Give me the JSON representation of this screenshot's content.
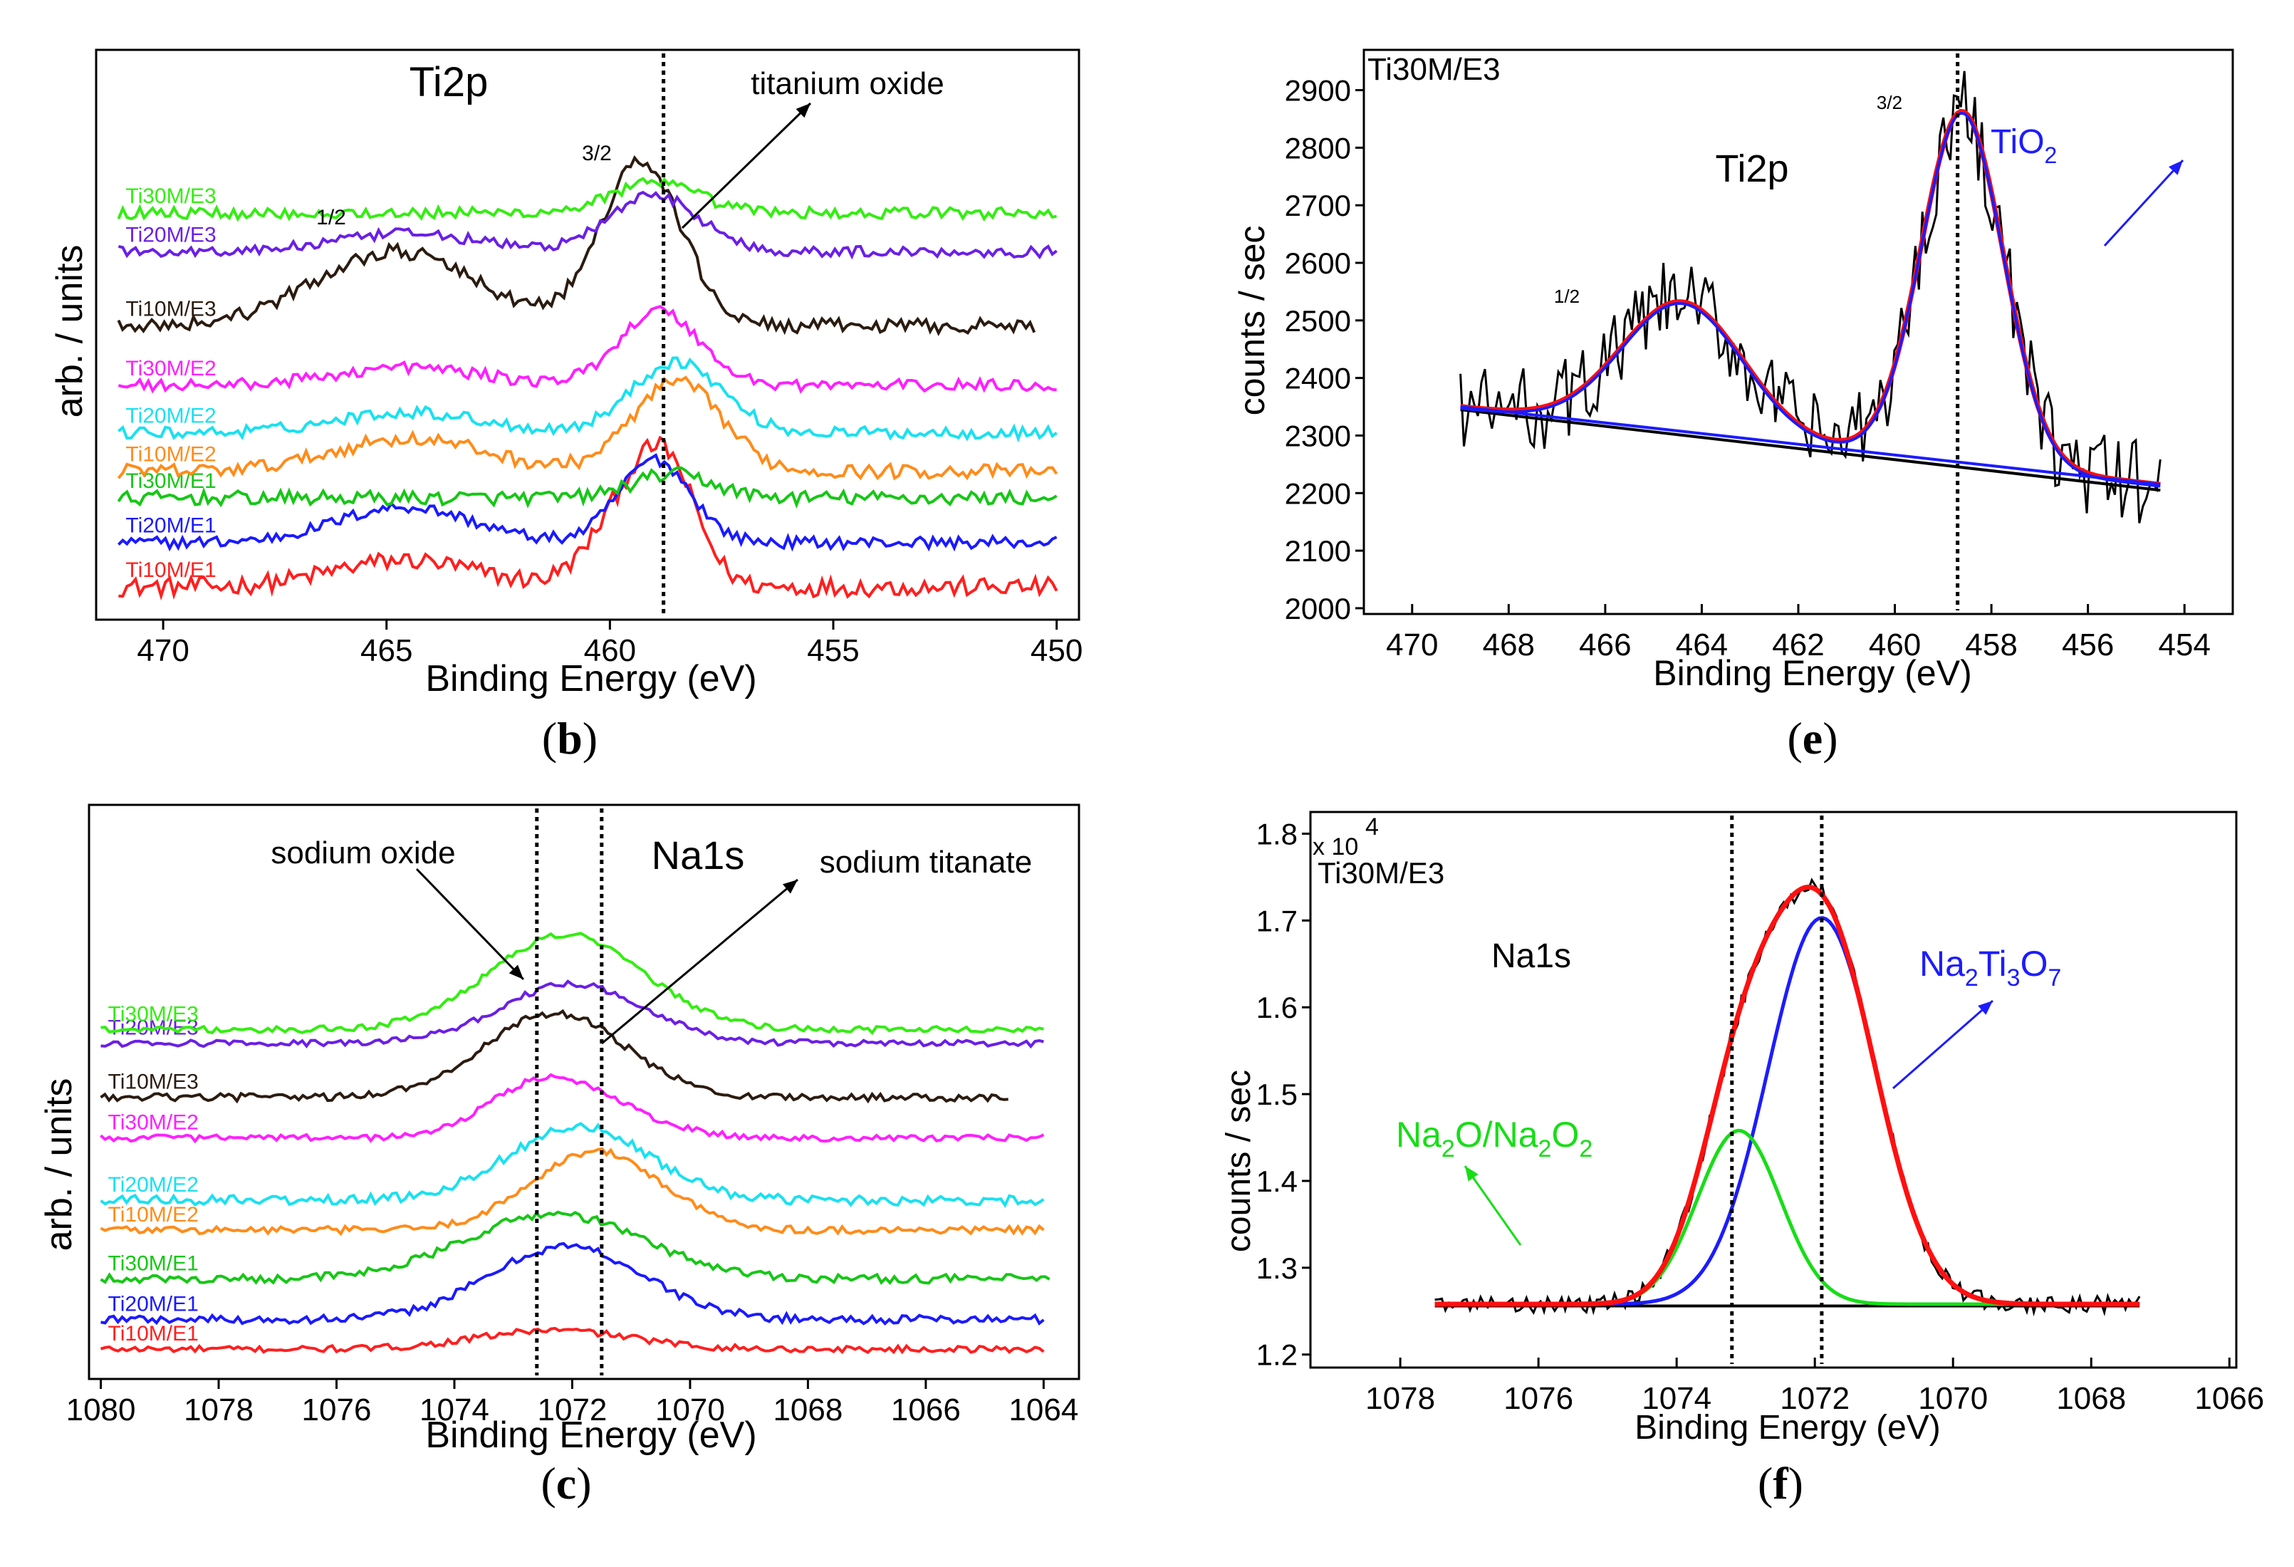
{
  "chart_data": [
    {
      "id": "b",
      "type": "line",
      "caption": "b",
      "title": "Ti2p",
      "xlabel": "Binding Energy (eV)",
      "ylabel": "arb. / units",
      "xlim": [
        471.5,
        449.5
      ],
      "xticks": [
        470,
        465,
        460,
        455,
        450
      ],
      "ylim": [
        0,
        9.6
      ],
      "grid": false,
      "vlines": [
        458.8
      ],
      "annotations": [
        {
          "text": "titanium oxide",
          "at_x": 458.0,
          "at_y": 7.0
        },
        {
          "text": "3/2",
          "at_x": 460.5,
          "at_y": 7.75
        },
        {
          "text": "1/2",
          "at_x": 466.2,
          "at_y": 6.75
        }
      ],
      "series": [
        {
          "name": "Ti10M/E1",
          "color": "#ff1f1f",
          "x_range": [
            471,
            450
          ],
          "baseline": 0.55,
          "noise": 0.16,
          "peaks": [
            [
              459.3,
              1.75,
              0.9
            ],
            [
              458.6,
              0.9,
              0.6
            ],
            [
              464.6,
              0.45,
              1.6
            ]
          ],
          "label": "Ti10M/E1"
        },
        {
          "name": "Ti20M/E1",
          "color": "#1a1aff",
          "x_range": [
            471,
            450
          ],
          "baseline": 1.3,
          "noise": 0.1,
          "peaks": [
            [
              459.0,
              1.4,
              0.8
            ],
            [
              464.6,
              0.6,
              1.5
            ]
          ],
          "label": "Ti20M/E1"
        },
        {
          "name": "Ti30M/E1",
          "color": "#16c716",
          "x_range": [
            471,
            450
          ],
          "baseline": 2.05,
          "noise": 0.12,
          "peaks": [
            [
              458.6,
              0.4,
              0.9
            ]
          ],
          "label": "Ti30M/E1"
        },
        {
          "name": "Ti10M/E2",
          "color": "#ff8c1a",
          "x_range": [
            471,
            450
          ],
          "baseline": 2.5,
          "noise": 0.12,
          "peaks": [
            [
              458.5,
              1.5,
              1.0
            ],
            [
              464.5,
              0.55,
              1.7
            ]
          ],
          "label": "Ti10M/E2"
        },
        {
          "name": "Ti20M/E2",
          "color": "#19e1f0",
          "x_range": [
            471,
            450
          ],
          "baseline": 3.15,
          "noise": 0.1,
          "peaks": [
            [
              458.5,
              1.2,
              1.0
            ],
            [
              464.5,
              0.35,
              1.6
            ]
          ],
          "label": "Ti20M/E2"
        },
        {
          "name": "Ti30M/E2",
          "color": "#ff1fff",
          "x_range": [
            471,
            450
          ],
          "baseline": 3.95,
          "noise": 0.1,
          "peaks": [
            [
              458.9,
              1.25,
              0.9
            ],
            [
              464.5,
              0.3,
              1.6
            ]
          ],
          "label": "Ti30M/E2"
        },
        {
          "name": "Ti10M/E3",
          "color": "#2b1b10",
          "x_range": [
            471,
            450.5
          ],
          "baseline": 4.95,
          "noise": 0.12,
          "peaks": [
            [
              459.3,
              2.75,
              0.9
            ],
            [
              464.8,
              1.25,
              1.8
            ]
          ],
          "label": "Ti10M/E3"
        },
        {
          "name": "Ti20M/E3",
          "color": "#6b1fe6",
          "x_range": [
            471,
            450
          ],
          "baseline": 6.2,
          "noise": 0.09,
          "peaks": [
            [
              459.0,
              0.95,
              1.0
            ],
            [
              464.5,
              0.3,
              1.6
            ]
          ],
          "label": "Ti20M/E3"
        },
        {
          "name": "Ti30M/E3",
          "color": "#33ee11",
          "x_range": [
            471,
            450
          ],
          "baseline": 6.85,
          "noise": 0.1,
          "peaks": [
            [
              459.0,
              0.5,
              1.0
            ]
          ],
          "label": "Ti30M/E3"
        }
      ]
    },
    {
      "id": "e",
      "type": "line",
      "caption": "e",
      "title": "Ti2p",
      "sample": "Ti30M/E3",
      "xlabel": "Binding Energy (eV)",
      "ylabel": "counts / sec",
      "xlim": [
        471,
        453
      ],
      "xticks": [
        470,
        468,
        466,
        464,
        462,
        460,
        458,
        456,
        454
      ],
      "ylim": [
        1990,
        2970
      ],
      "yticks": [
        2000,
        2100,
        2200,
        2300,
        2400,
        2500,
        2600,
        2700,
        2800,
        2900
      ],
      "grid": false,
      "vlines": [
        458.7
      ],
      "annotations": [
        {
          "text": "3/2",
          "at_x": 459.2,
          "at_y": 2875
        },
        {
          "text": "1/2",
          "at_x": 464.6,
          "at_y": 2550
        },
        {
          "text": "TiO2",
          "at_x": 455.8,
          "at_y": 2820
        }
      ],
      "series": [
        {
          "name": "experimental",
          "color": "#000000",
          "kind": "noisy",
          "x_range": [
            469,
            454.5
          ],
          "noise": 75
        },
        {
          "name": "background",
          "color": "#000000",
          "kind": "line",
          "points": [
            [
              469,
              2345
            ],
            [
              454.5,
              2205
            ]
          ]
        },
        {
          "name": "fit envelope",
          "color": "#ff1010",
          "kind": "fit"
        },
        {
          "name": "TiO2 component",
          "color": "#1c1cff",
          "kind": "fit"
        }
      ],
      "model": {
        "background": [
          [
            469,
            2350
          ],
          [
            454.5,
            2215
          ]
        ],
        "peaks": [
          [
            458.6,
            610,
            0.85
          ],
          [
            464.4,
            225,
            1.25
          ]
        ]
      }
    },
    {
      "id": "c",
      "type": "line",
      "caption": "c",
      "title": "Na1s",
      "xlabel": "Binding Energy (eV)",
      "ylabel": "arb. / units",
      "xlim": [
        1080.2,
        1063.4
      ],
      "xticks": [
        1080,
        1078,
        1076,
        1074,
        1072,
        1070,
        1068,
        1066,
        1064
      ],
      "ylim": [
        0,
        10.6
      ],
      "grid": false,
      "vlines": [
        1072.6,
        1071.5
      ],
      "annotations": [
        {
          "text": "sodium oxide",
          "at_x": 1072.8,
          "at_y": 6.3
        },
        {
          "text": "sodium titanate",
          "at_x": 1071.5,
          "at_y": 4.55
        }
      ],
      "series": [
        {
          "name": "Ti10M/E1",
          "color": "#ff1f1f",
          "x_range": [
            1080,
            1064
          ],
          "baseline": 0.55,
          "noise": 0.06,
          "peaks": [
            [
              1072.3,
              0.35,
              1.3
            ]
          ],
          "label": "Ti10M/E1"
        },
        {
          "name": "Ti20M/E1",
          "color": "#1a1aff",
          "x_range": [
            1080,
            1064
          ],
          "baseline": 1.1,
          "noise": 0.08,
          "peaks": [
            [
              1072.1,
              1.35,
              1.3
            ]
          ],
          "label": "Ti20M/E1"
        },
        {
          "name": "Ti30M/E1",
          "color": "#16c716",
          "x_range": [
            1080,
            1063.9
          ],
          "baseline": 1.85,
          "noise": 0.08,
          "peaks": [
            [
              1072.3,
              1.2,
              1.5
            ]
          ],
          "label": "Ti30M/E1"
        },
        {
          "name": "Ti10M/E2",
          "color": "#ff8c1a",
          "x_range": [
            1080,
            1064
          ],
          "baseline": 2.75,
          "noise": 0.07,
          "peaks": [
            [
              1071.6,
              1.45,
              1.1
            ]
          ],
          "label": "Ti10M/E2"
        },
        {
          "name": "Ti20M/E2",
          "color": "#19e1f0",
          "x_range": [
            1080,
            1064
          ],
          "baseline": 3.3,
          "noise": 0.09,
          "peaks": [
            [
              1071.9,
              1.35,
              1.2
            ]
          ],
          "label": "Ti20M/E2"
        },
        {
          "name": "Ti30M/E2",
          "color": "#ff1fff",
          "x_range": [
            1080,
            1064
          ],
          "baseline": 4.45,
          "noise": 0.06,
          "peaks": [
            [
              1072.6,
              0.85,
              0.9
            ],
            [
              1071.5,
              0.45,
              1.0
            ]
          ],
          "label": "Ti30M/E2"
        },
        {
          "name": "Ti10M/E3",
          "color": "#2b1b10",
          "x_range": [
            1080,
            1064.6
          ],
          "baseline": 5.2,
          "noise": 0.07,
          "peaks": [
            [
              1072.3,
              1.55,
              1.2
            ]
          ],
          "label": "Ti10M/E3"
        },
        {
          "name": "Ti20M/E3",
          "color": "#6b1fe6",
          "x_range": [
            1080,
            1064
          ],
          "baseline": 6.2,
          "noise": 0.06,
          "peaks": [
            [
              1072.0,
              1.1,
              1.2
            ]
          ],
          "label": "Ti20M/E3"
        },
        {
          "name": "Ti30M/E3",
          "color": "#33ee11",
          "x_range": [
            1080,
            1064
          ],
          "baseline": 6.45,
          "noise": 0.06,
          "peaks": [
            [
              1072.1,
              1.75,
              1.3
            ]
          ],
          "label": "Ti30M/E3"
        }
      ]
    },
    {
      "id": "f",
      "type": "line",
      "caption": "f",
      "title": "Na1s",
      "sample": "Ti30M/E3",
      "xlabel": "Binding Energy (eV)",
      "ylabel": "counts / sec",
      "y_multiplier": "x 10",
      "y_exponent": "4",
      "xlim": [
        1079.3,
        1065.9
      ],
      "xticks": [
        1078,
        1076,
        1074,
        1072,
        1070,
        1068,
        1066
      ],
      "ylim": [
        1.185,
        1.825
      ],
      "yticks": [
        1.2,
        1.3,
        1.4,
        1.5,
        1.6,
        1.7,
        1.8
      ],
      "grid": false,
      "vlines": [
        1073.2,
        1071.9
      ],
      "annotations": [
        {
          "text": "Na2Ti3O7",
          "at_x": 1070.3,
          "at_y": 1.67
        },
        {
          "text": "Na2O/Na2O2",
          "at_x": 1075.6,
          "at_y": 1.51
        }
      ],
      "series": [
        {
          "name": "experimental",
          "color": "#000000",
          "kind": "noisy",
          "x_range": [
            1077.5,
            1067.3
          ],
          "noise": 0.01
        },
        {
          "name": "baseline",
          "color": "#000000",
          "kind": "line",
          "points": [
            [
              1077.5,
              1.256
            ],
            [
              1067.3,
              1.256
            ]
          ]
        },
        {
          "name": "Na2Ti3O7 component",
          "color": "#1c1cff",
          "kind": "fit"
        },
        {
          "name": "Na2O/Na2O2 component",
          "color": "#18dd18",
          "kind": "fit"
        },
        {
          "name": "fit envelope",
          "color": "#ff1010",
          "kind": "fit"
        }
      ],
      "model": {
        "baseline": 1.258,
        "peaks": [
          [
            1071.9,
            0.445,
            0.78
          ],
          [
            1073.1,
            0.2,
            0.6
          ]
        ]
      }
    }
  ]
}
